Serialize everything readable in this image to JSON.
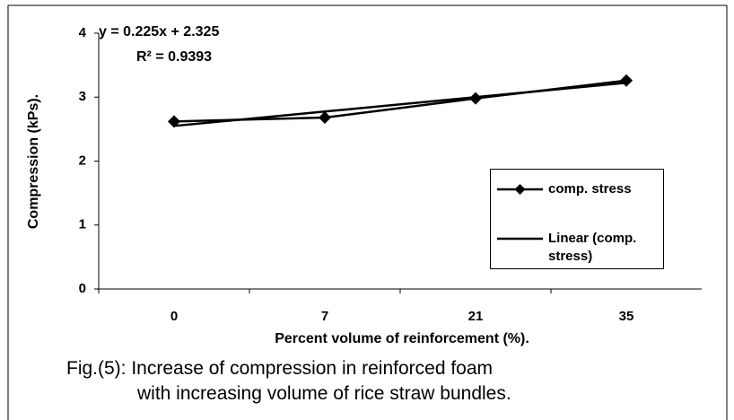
{
  "chart_data": {
    "type": "line",
    "categories": [
      "0",
      "7",
      "21",
      "35"
    ],
    "series": [
      {
        "name": "comp. stress",
        "color": "#000000",
        "marker": "diamond",
        "values": [
          2.62,
          2.68,
          2.98,
          3.26
        ]
      },
      {
        "name": "Linear (comp. stress)",
        "color": "#000000",
        "marker": "none",
        "values": [
          2.55,
          2.775,
          3.0,
          3.225
        ]
      }
    ],
    "xlabel": "Percent volume of reinforcement (%).",
    "ylabel": "Compression (kPs).",
    "ylim": [
      0,
      4
    ],
    "yticks": [
      0,
      1,
      2,
      3,
      4
    ],
    "annotations": [
      "y = 0.225x + 2.325",
      "R² = 0.9393"
    ],
    "legend": "right",
    "caption": [
      "Fig.(5): Increase of compression in reinforced foam",
      "with increasing volume of rice straw bundles."
    ]
  }
}
